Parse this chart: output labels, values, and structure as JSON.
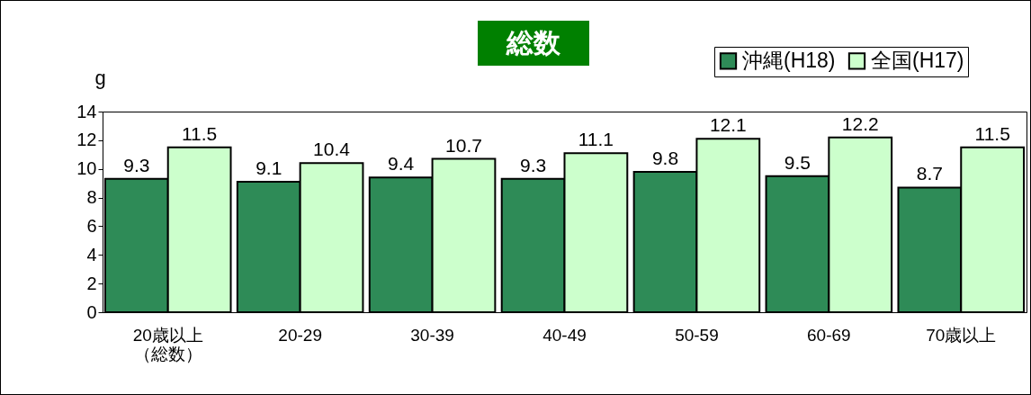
{
  "chart_data": {
    "type": "bar",
    "title": "総数",
    "ylabel": "g",
    "categories": [
      "20歳以上（総数）",
      "20-29",
      "30-39",
      "40-49",
      "50-59",
      "60-69",
      "70歳以上"
    ],
    "series": [
      {
        "name": "沖縄(H18)",
        "color": "#2e8b57",
        "values": [
          9.3,
          9.1,
          9.4,
          9.3,
          9.8,
          9.5,
          8.7
        ]
      },
      {
        "name": "全国(H17)",
        "color": "#ccffcc",
        "values": [
          11.5,
          10.4,
          10.7,
          11.1,
          12.1,
          12.2,
          11.5
        ]
      }
    ],
    "ylim": [
      0,
      14
    ],
    "yticks": [
      0,
      2,
      4,
      6,
      8,
      10,
      12,
      14
    ],
    "data_labels": true,
    "legend": "top right"
  }
}
